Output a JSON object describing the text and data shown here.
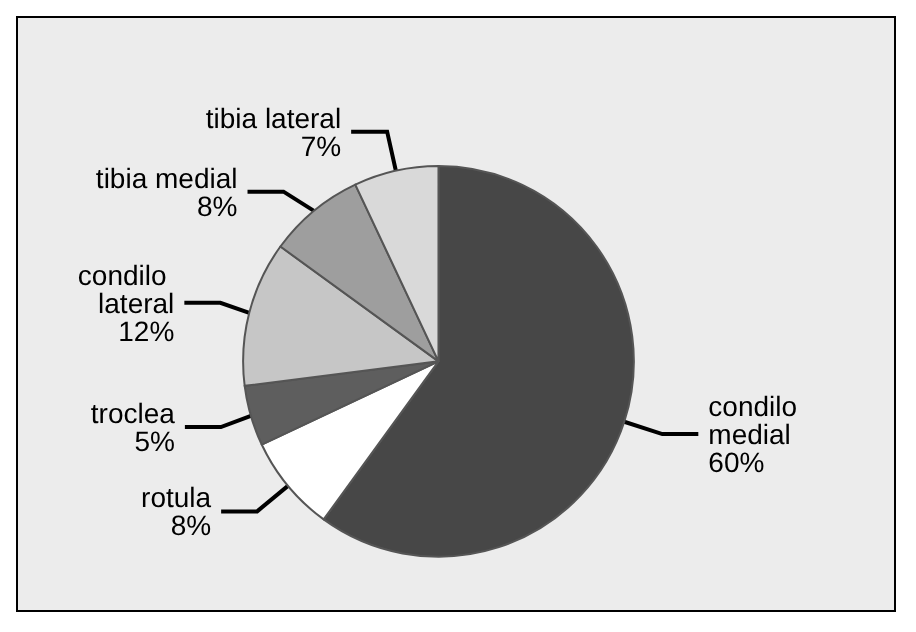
{
  "chart_data": {
    "type": "pie",
    "categories": [
      "condilo medial",
      "rotula",
      "troclea",
      "condilo lateral",
      "tibia medial",
      "tibia lateral"
    ],
    "values": [
      60,
      8,
      5,
      12,
      8,
      7
    ],
    "colors": [
      "#474747",
      "#ffffff",
      "#5e5e5e",
      "#c6c6c6",
      "#9e9e9e",
      "#d9d9d9"
    ],
    "value_labels": [
      "60%",
      "8%",
      "5%",
      "12%",
      "8%",
      "7%"
    ],
    "legend": false
  }
}
